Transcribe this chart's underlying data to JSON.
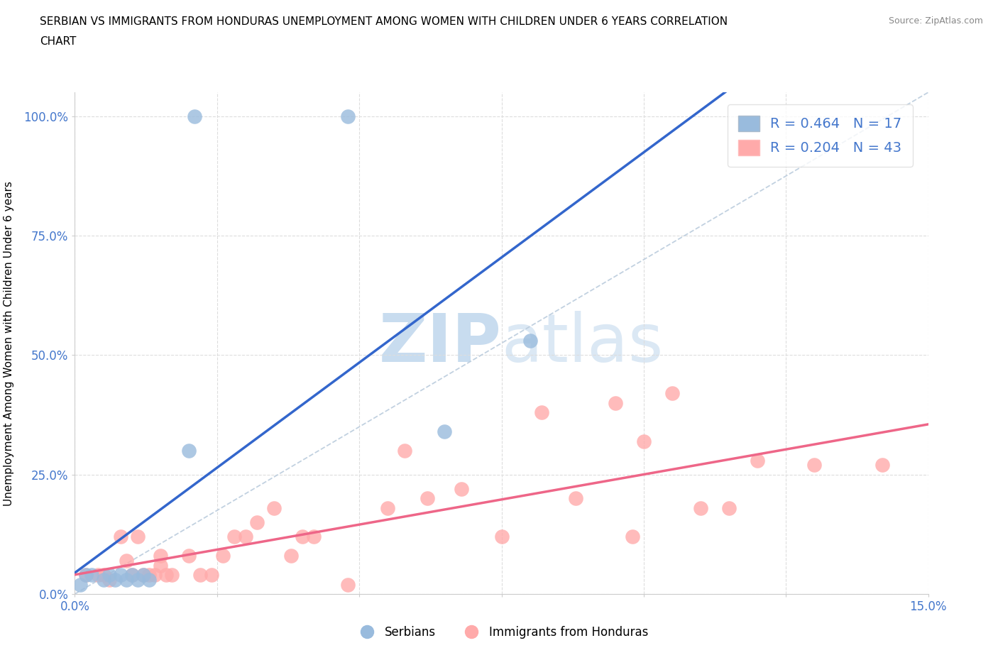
{
  "title_line1": "SERBIAN VS IMMIGRANTS FROM HONDURAS UNEMPLOYMENT AMONG WOMEN WITH CHILDREN UNDER 6 YEARS CORRELATION",
  "title_line2": "CHART",
  "source": "Source: ZipAtlas.com",
  "ylabel": "Unemployment Among Women with Children Under 6 years",
  "xlim": [
    0.0,
    0.15
  ],
  "ylim": [
    0.0,
    1.05
  ],
  "yticks": [
    0.0,
    0.25,
    0.5,
    0.75,
    1.0
  ],
  "ytick_labels": [
    "0.0%",
    "25.0%",
    "50.0%",
    "75.0%",
    "100.0%"
  ],
  "xtick_positions": [
    0.0,
    0.025,
    0.05,
    0.075,
    0.1,
    0.125,
    0.15
  ],
  "xtick_labels": [
    "0.0%",
    "",
    "",
    "",
    "",
    "",
    "15.0%"
  ],
  "serbians_R": 0.464,
  "serbians_N": 17,
  "hondurans_R": 0.204,
  "hondurans_N": 43,
  "blue_scatter_color": "#99BBDD",
  "pink_scatter_color": "#FFAAAA",
  "blue_line_color": "#3366CC",
  "pink_line_color": "#EE6688",
  "diagonal_color": "#BBCCDD",
  "tick_label_color": "#4477CC",
  "watermark": "ZIPatlas",
  "watermark_color": "#DDEEFF",
  "serbians_x": [
    0.001,
    0.002,
    0.003,
    0.005,
    0.006,
    0.007,
    0.008,
    0.009,
    0.01,
    0.011,
    0.012,
    0.013,
    0.02,
    0.021,
    0.048,
    0.065,
    0.08
  ],
  "serbians_y": [
    0.02,
    0.04,
    0.04,
    0.03,
    0.04,
    0.03,
    0.04,
    0.03,
    0.04,
    0.03,
    0.04,
    0.03,
    0.3,
    1.0,
    1.0,
    0.34,
    0.53
  ],
  "hondurans_x": [
    0.002,
    0.004,
    0.005,
    0.006,
    0.008,
    0.009,
    0.01,
    0.011,
    0.012,
    0.013,
    0.014,
    0.015,
    0.015,
    0.016,
    0.017,
    0.02,
    0.022,
    0.024,
    0.026,
    0.028,
    0.03,
    0.032,
    0.035,
    0.038,
    0.04,
    0.042,
    0.048,
    0.055,
    0.058,
    0.062,
    0.068,
    0.075,
    0.082,
    0.088,
    0.095,
    0.098,
    0.1,
    0.105,
    0.11,
    0.115,
    0.12,
    0.13,
    0.142
  ],
  "hondurans_y": [
    0.04,
    0.04,
    0.04,
    0.03,
    0.12,
    0.07,
    0.04,
    0.12,
    0.04,
    0.04,
    0.04,
    0.06,
    0.08,
    0.04,
    0.04,
    0.08,
    0.04,
    0.04,
    0.08,
    0.12,
    0.12,
    0.15,
    0.18,
    0.08,
    0.12,
    0.12,
    0.02,
    0.18,
    0.3,
    0.2,
    0.22,
    0.12,
    0.38,
    0.2,
    0.4,
    0.12,
    0.32,
    0.42,
    0.18,
    0.18,
    0.28,
    0.27,
    0.27
  ]
}
